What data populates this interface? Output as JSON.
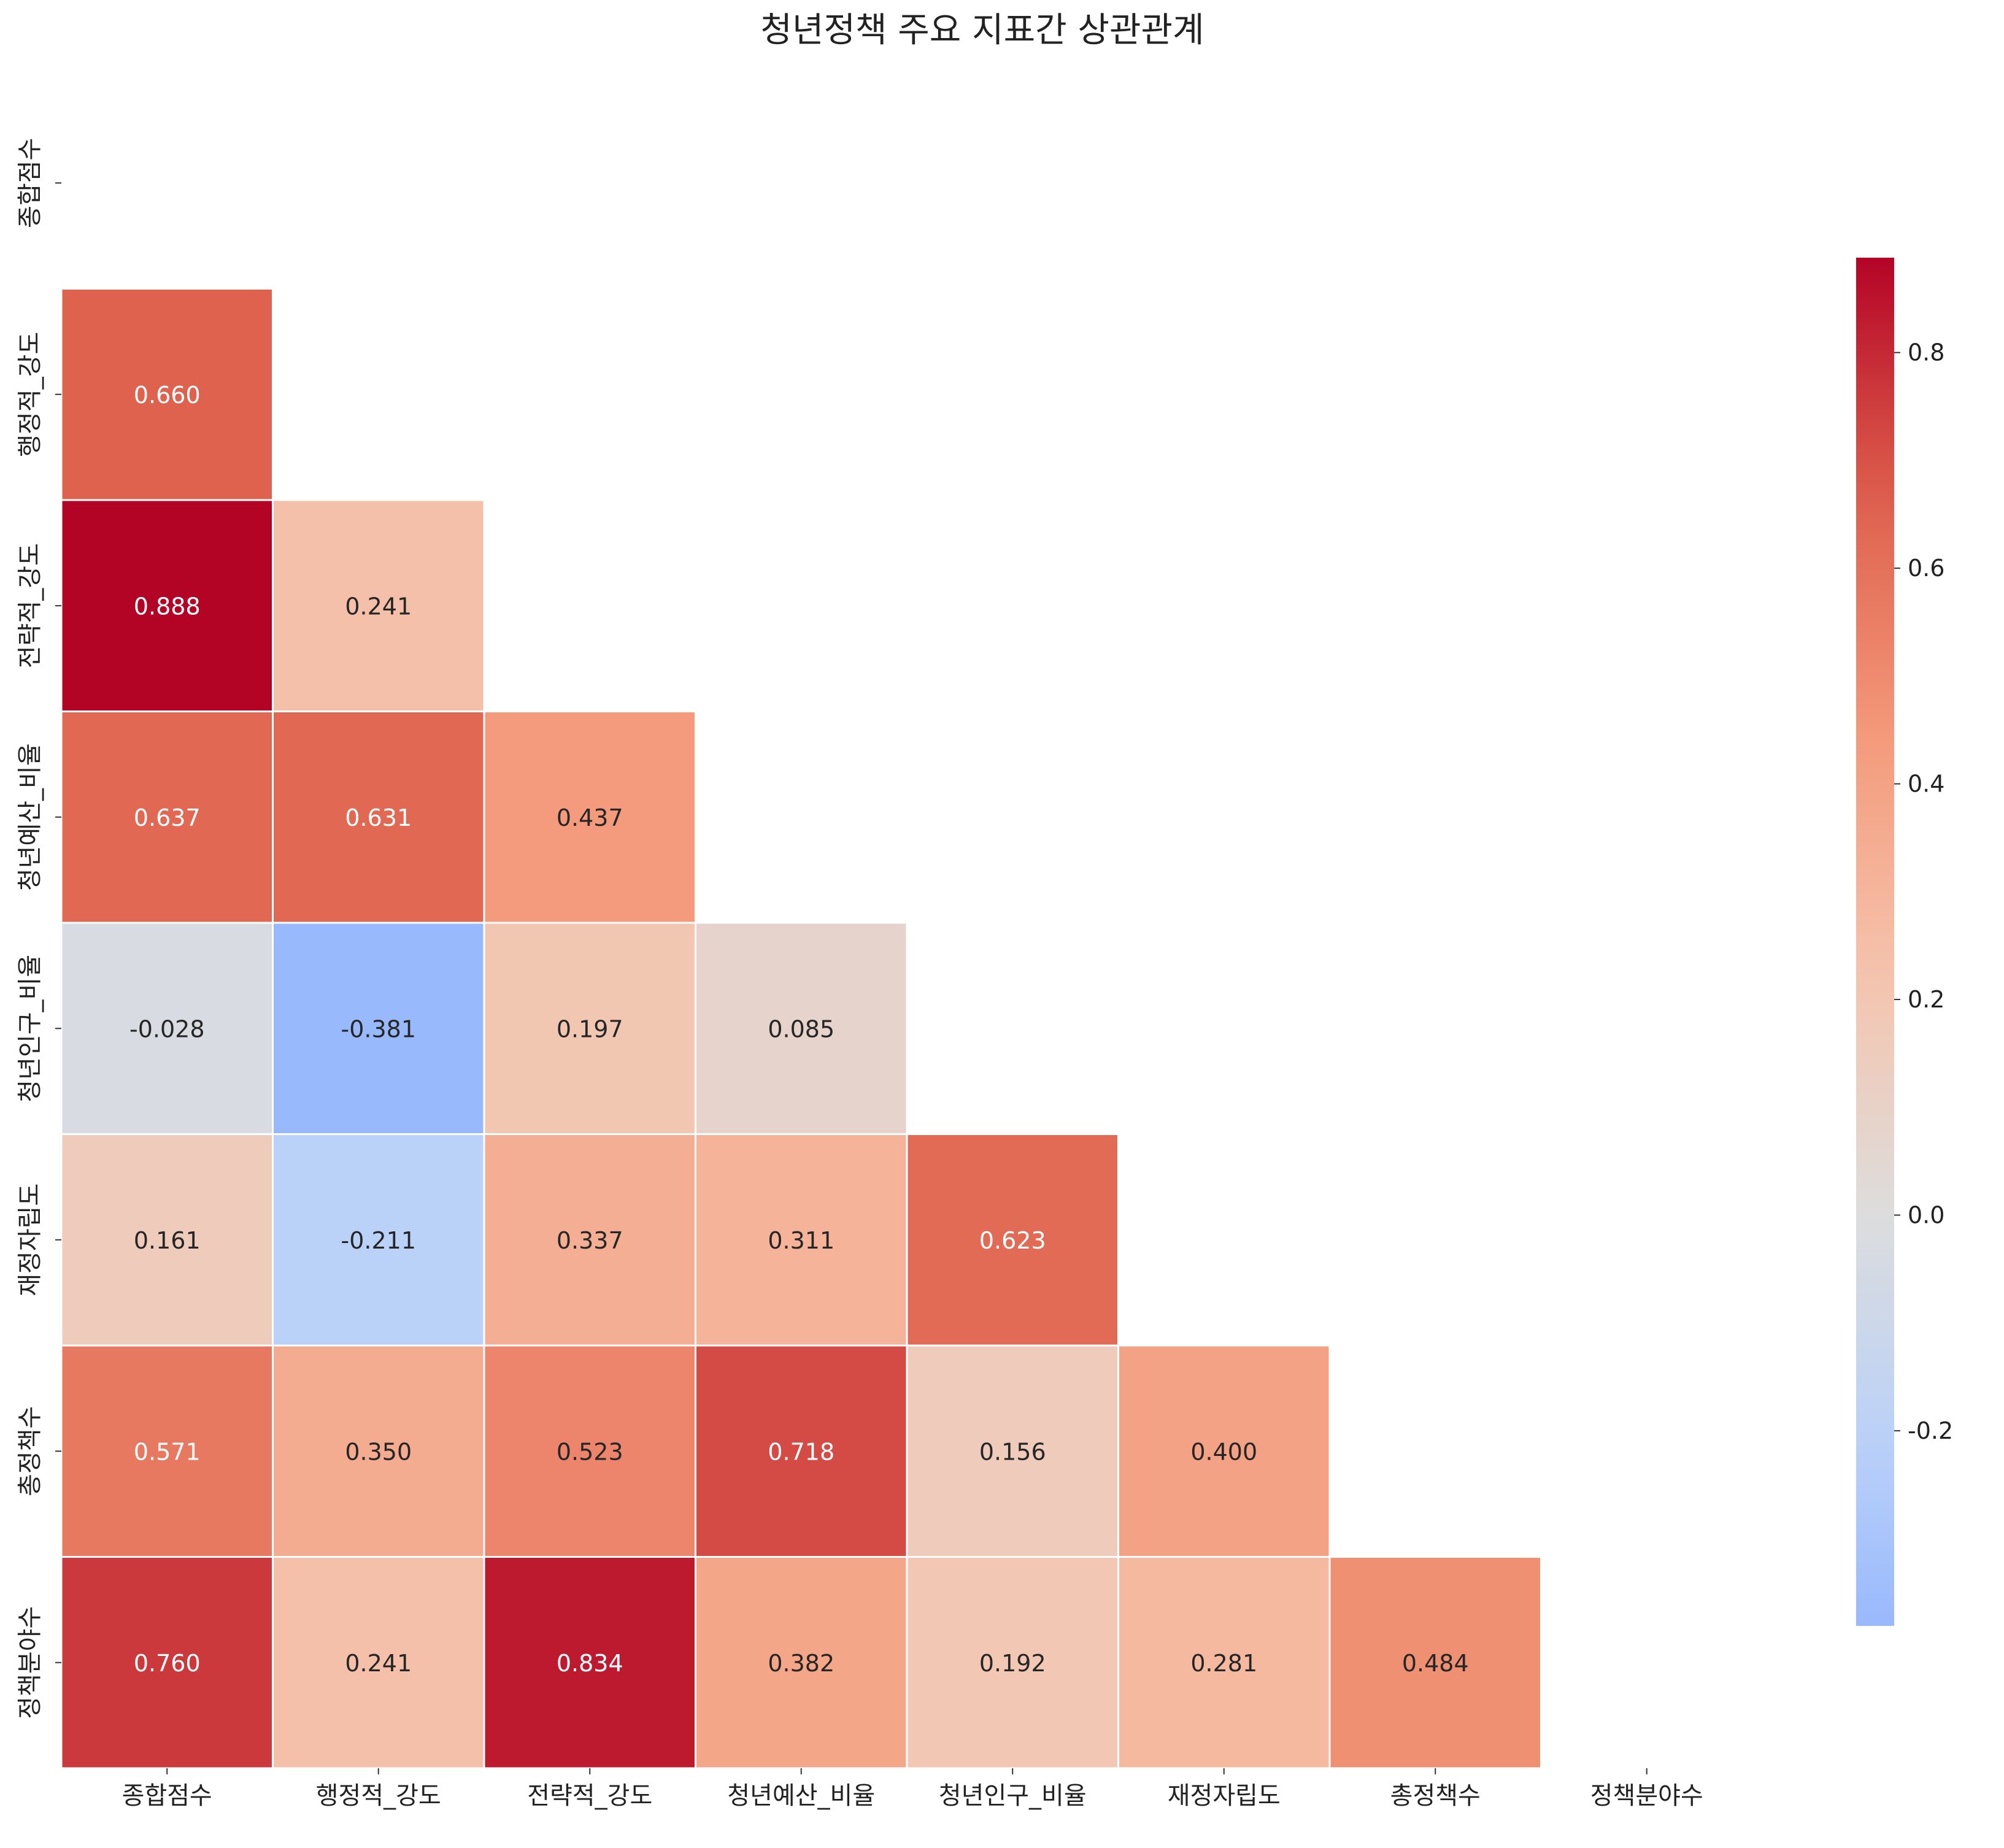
{
  "chart_data": {
    "type": "heatmap",
    "title": "청년정책 주요 지표간 상관관계",
    "xlabel": "",
    "ylabel": "",
    "labels": [
      "종합점수",
      "행정적_강도",
      "전략적_강도",
      "청년예산_비율",
      "청년인구_비율",
      "재정자립도",
      "총정책수",
      "정책분야수"
    ],
    "mask": "upper-triangle-including-diagonal",
    "values": [
      [
        null,
        null,
        null,
        null,
        null,
        null,
        null,
        null
      ],
      [
        0.66,
        null,
        null,
        null,
        null,
        null,
        null,
        null
      ],
      [
        0.888,
        0.241,
        null,
        null,
        null,
        null,
        null,
        null
      ],
      [
        0.637,
        0.631,
        0.437,
        null,
        null,
        null,
        null,
        null
      ],
      [
        -0.028,
        -0.381,
        0.197,
        0.085,
        null,
        null,
        null,
        null
      ],
      [
        0.161,
        -0.211,
        0.337,
        0.311,
        0.623,
        null,
        null,
        null
      ],
      [
        0.571,
        0.35,
        0.523,
        0.718,
        0.156,
        0.4,
        null,
        null
      ],
      [
        0.76,
        0.241,
        0.834,
        0.382,
        0.192,
        0.281,
        0.484,
        null
      ]
    ],
    "colormap": "coolwarm",
    "center": 0,
    "vmin": -0.381,
    "vmax": 0.888,
    "colorbar": {
      "ticks": [
        -0.2,
        0.0,
        0.2,
        0.4,
        0.6,
        0.8
      ],
      "tick_labels": [
        "-0.2",
        "0.0",
        "0.2",
        "0.4",
        "0.6",
        "0.8"
      ]
    },
    "annotation_format": "0.000"
  }
}
